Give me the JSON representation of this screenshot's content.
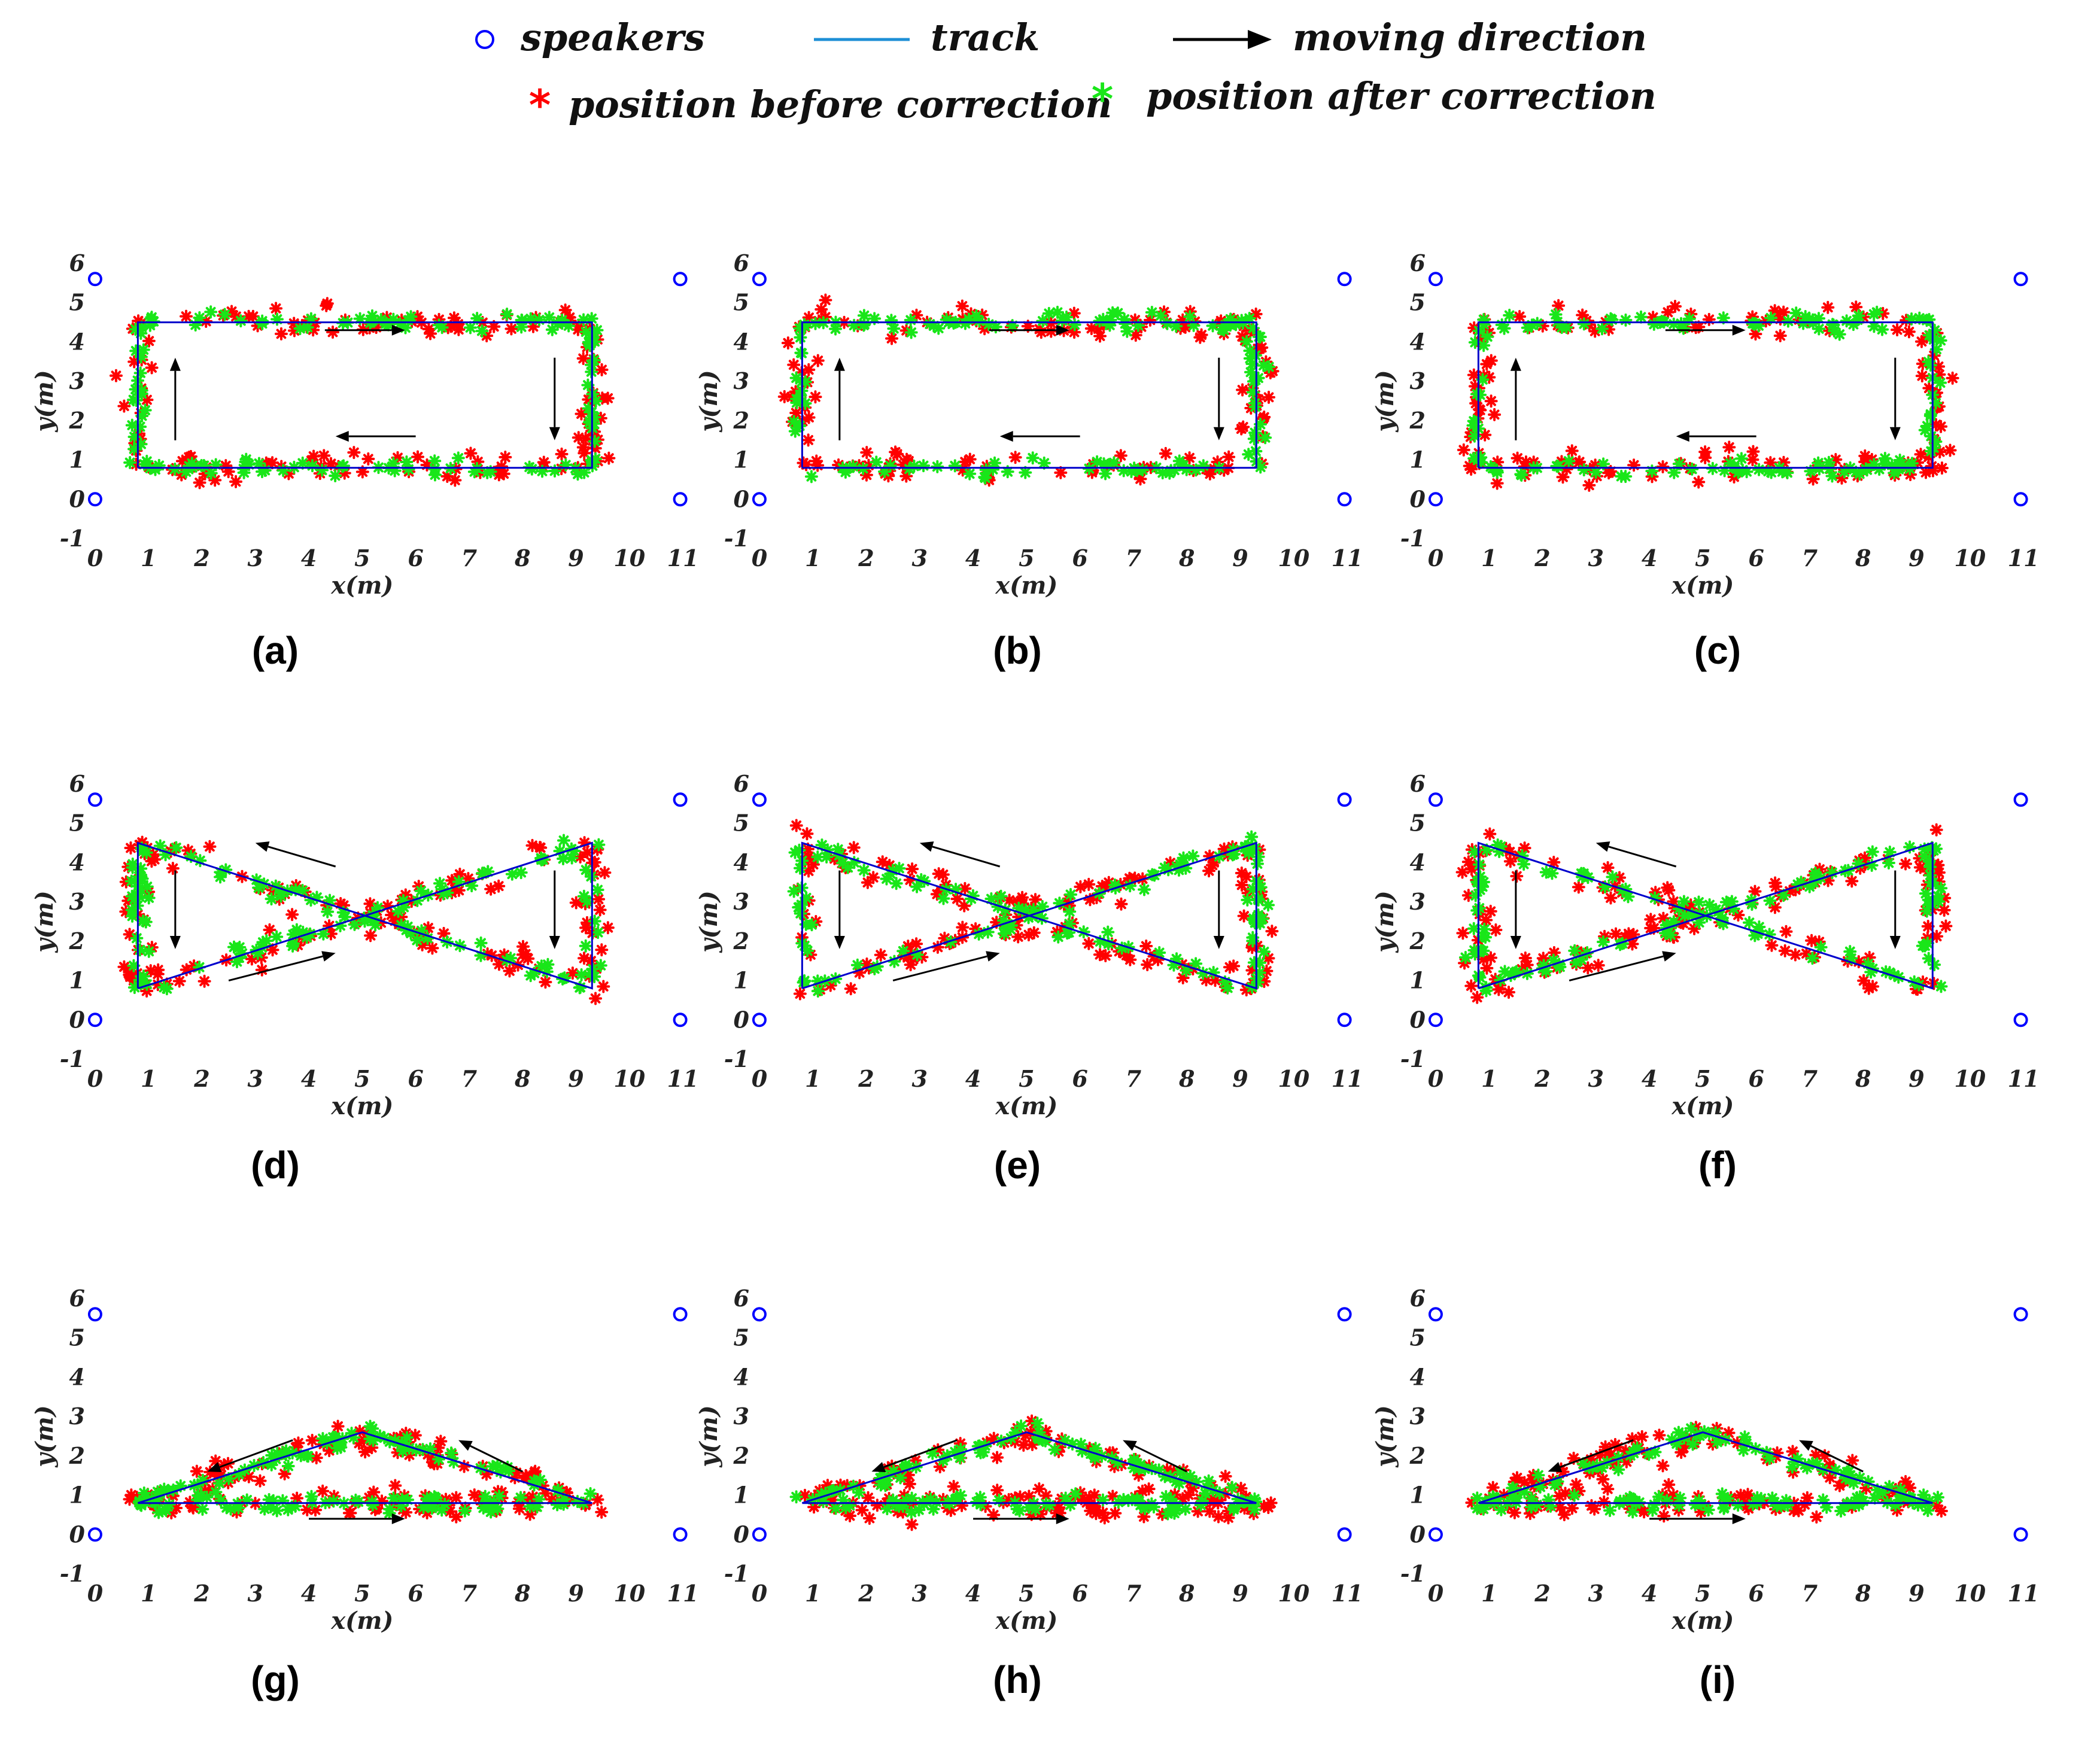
{
  "legend": {
    "speakers": "speakers",
    "track": "track",
    "moving_direction": "moving direction",
    "before": "position before correction",
    "after": "position after correction"
  },
  "colors": {
    "speaker": "#0000ff",
    "track": "#0000cc",
    "track_legend": "#1e8fd6",
    "before": "#ff0000",
    "after": "#19e619",
    "arrow": "#000000"
  },
  "chart_data": [
    {
      "id": "a",
      "label": "(a)",
      "type": "scatter",
      "shape": "rectangle",
      "xlabel": "x(m)",
      "ylabel": "y(m)",
      "xlim": [
        -0.1,
        11.1
      ],
      "ylim": [
        -1,
        6
      ],
      "xticks": [
        0,
        1,
        2,
        3,
        4,
        5,
        6,
        7,
        8,
        9,
        10,
        11
      ],
      "yticks": [
        -1,
        0,
        1,
        2,
        3,
        4,
        5,
        6
      ],
      "speakers": [
        [
          0,
          5.6
        ],
        [
          10.95,
          5.6
        ],
        [
          0,
          0
        ],
        [
          10.95,
          0
        ]
      ],
      "track": [
        [
          0.8,
          0.8
        ],
        [
          9.3,
          0.8
        ],
        [
          9.3,
          4.5
        ],
        [
          0.8,
          4.5
        ],
        [
          0.8,
          0.8
        ]
      ],
      "arrows": [
        [
          4.3,
          4.3,
          5.8,
          4.3
        ],
        [
          6,
          1.6,
          4.5,
          1.6
        ],
        [
          1.5,
          1.5,
          1.5,
          3.6
        ],
        [
          8.6,
          3.6,
          8.6,
          1.5
        ]
      ],
      "seed": 11
    },
    {
      "id": "b",
      "label": "(b)",
      "type": "scatter",
      "shape": "rectangle",
      "xlabel": "x(m)",
      "ylabel": "y(m)",
      "xlim": [
        -0.1,
        11.1
      ],
      "ylim": [
        -1,
        6
      ],
      "xticks": [
        0,
        1,
        2,
        3,
        4,
        5,
        6,
        7,
        8,
        9,
        10,
        11
      ],
      "yticks": [
        -1,
        0,
        1,
        2,
        3,
        4,
        5,
        6
      ],
      "speakers": [
        [
          0,
          5.6
        ],
        [
          10.95,
          5.6
        ],
        [
          0,
          0
        ],
        [
          10.95,
          0
        ]
      ],
      "track": [
        [
          0.8,
          0.8
        ],
        [
          9.3,
          0.8
        ],
        [
          9.3,
          4.5
        ],
        [
          0.8,
          4.5
        ],
        [
          0.8,
          0.8
        ]
      ],
      "arrows": [
        [
          4.3,
          4.3,
          5.8,
          4.3
        ],
        [
          6,
          1.6,
          4.5,
          1.6
        ],
        [
          1.5,
          1.5,
          1.5,
          3.6
        ],
        [
          8.6,
          3.6,
          8.6,
          1.5
        ]
      ],
      "seed": 23
    },
    {
      "id": "c",
      "label": "(c)",
      "type": "scatter",
      "shape": "rectangle",
      "xlabel": "x(m)",
      "ylabel": "y(m)",
      "xlim": [
        -0.1,
        11.1
      ],
      "ylim": [
        -1,
        6
      ],
      "xticks": [
        0,
        1,
        2,
        3,
        4,
        5,
        6,
        7,
        8,
        9,
        10,
        11
      ],
      "yticks": [
        -1,
        0,
        1,
        2,
        3,
        4,
        5,
        6
      ],
      "speakers": [
        [
          0,
          5.6
        ],
        [
          10.95,
          5.6
        ],
        [
          0,
          0
        ],
        [
          10.95,
          0
        ]
      ],
      "track": [
        [
          0.8,
          0.8
        ],
        [
          9.3,
          0.8
        ],
        [
          9.3,
          4.5
        ],
        [
          0.8,
          4.5
        ],
        [
          0.8,
          0.8
        ]
      ],
      "arrows": [
        [
          4.3,
          4.3,
          5.8,
          4.3
        ],
        [
          6,
          1.6,
          4.5,
          1.6
        ],
        [
          1.5,
          1.5,
          1.5,
          3.6
        ],
        [
          8.6,
          3.6,
          8.6,
          1.5
        ]
      ],
      "seed": 37
    },
    {
      "id": "d",
      "label": "(d)",
      "type": "scatter",
      "shape": "bowtie",
      "xlabel": "x(m)",
      "ylabel": "y(m)",
      "xlim": [
        -0.1,
        11.1
      ],
      "ylim": [
        -1,
        6
      ],
      "xticks": [
        0,
        1,
        2,
        3,
        4,
        5,
        6,
        7,
        8,
        9,
        10,
        11
      ],
      "yticks": [
        -1,
        0,
        1,
        2,
        3,
        4,
        5,
        6
      ],
      "speakers": [
        [
          0,
          5.6
        ],
        [
          10.95,
          5.6
        ],
        [
          0,
          0
        ],
        [
          10.95,
          0
        ]
      ],
      "track": [
        [
          0.8,
          0.8
        ],
        [
          9.3,
          4.5
        ],
        [
          9.3,
          0.8
        ],
        [
          0.8,
          4.5
        ],
        [
          0.8,
          0.8
        ]
      ],
      "arrows": [
        [
          4.5,
          3.9,
          3,
          4.5
        ],
        [
          2.5,
          1,
          4.5,
          1.7
        ],
        [
          1.5,
          3.8,
          1.5,
          1.8
        ],
        [
          8.6,
          3.8,
          8.6,
          1.8
        ]
      ],
      "seed": 41
    },
    {
      "id": "e",
      "label": "(e)",
      "type": "scatter",
      "shape": "bowtie",
      "xlabel": "x(m)",
      "ylabel": "y(m)",
      "xlim": [
        -0.1,
        11.1
      ],
      "ylim": [
        -1,
        6
      ],
      "xticks": [
        0,
        1,
        2,
        3,
        4,
        5,
        6,
        7,
        8,
        9,
        10,
        11
      ],
      "yticks": [
        -1,
        0,
        1,
        2,
        3,
        4,
        5,
        6
      ],
      "speakers": [
        [
          0,
          5.6
        ],
        [
          10.95,
          5.6
        ],
        [
          0,
          0
        ],
        [
          10.95,
          0
        ]
      ],
      "track": [
        [
          0.8,
          0.8
        ],
        [
          9.3,
          4.5
        ],
        [
          9.3,
          0.8
        ],
        [
          0.8,
          4.5
        ],
        [
          0.8,
          0.8
        ]
      ],
      "arrows": [
        [
          4.5,
          3.9,
          3,
          4.5
        ],
        [
          2.5,
          1,
          4.5,
          1.7
        ],
        [
          1.5,
          3.8,
          1.5,
          1.8
        ],
        [
          8.6,
          3.8,
          8.6,
          1.8
        ]
      ],
      "seed": 53
    },
    {
      "id": "f",
      "label": "(f)",
      "type": "scatter",
      "shape": "bowtie",
      "xlabel": "x(m)",
      "ylabel": "y(m)",
      "xlim": [
        -0.1,
        11.1
      ],
      "ylim": [
        -1,
        6
      ],
      "xticks": [
        0,
        1,
        2,
        3,
        4,
        5,
        6,
        7,
        8,
        9,
        10,
        11
      ],
      "yticks": [
        -1,
        0,
        1,
        2,
        3,
        4,
        5,
        6
      ],
      "speakers": [
        [
          0,
          5.6
        ],
        [
          10.95,
          5.6
        ],
        [
          0,
          0
        ],
        [
          10.95,
          0
        ]
      ],
      "track": [
        [
          0.8,
          0.8
        ],
        [
          9.3,
          4.5
        ],
        [
          9.3,
          0.8
        ],
        [
          0.8,
          4.5
        ],
        [
          0.8,
          0.8
        ]
      ],
      "arrows": [
        [
          4.5,
          3.9,
          3,
          4.5
        ],
        [
          2.5,
          1,
          4.5,
          1.7
        ],
        [
          1.5,
          3.8,
          1.5,
          1.8
        ],
        [
          8.6,
          3.8,
          8.6,
          1.8
        ]
      ],
      "seed": 67
    },
    {
      "id": "g",
      "label": "(g)",
      "type": "scatter",
      "shape": "triangle",
      "xlabel": "x(m)",
      "ylabel": "y(m)",
      "xlim": [
        -0.1,
        11.1
      ],
      "ylim": [
        -1,
        6
      ],
      "xticks": [
        0,
        1,
        2,
        3,
        4,
        5,
        6,
        7,
        8,
        9,
        10,
        11
      ],
      "yticks": [
        -1,
        0,
        1,
        2,
        3,
        4,
        5,
        6
      ],
      "speakers": [
        [
          0,
          5.6
        ],
        [
          10.95,
          5.6
        ],
        [
          0,
          0
        ],
        [
          10.95,
          0
        ]
      ],
      "track": [
        [
          0.8,
          0.8
        ],
        [
          5,
          2.6
        ],
        [
          9.3,
          0.8
        ],
        [
          0.8,
          0.8
        ]
      ],
      "arrows": [
        [
          3.7,
          2.4,
          2.1,
          1.6
        ],
        [
          8,
          1.6,
          6.8,
          2.4
        ],
        [
          4,
          0.4,
          5.8,
          0.4
        ]
      ],
      "seed": 71
    },
    {
      "id": "h",
      "label": "(h)",
      "type": "scatter",
      "shape": "triangle",
      "xlabel": "x(m)",
      "ylabel": "y(m)",
      "xlim": [
        -0.1,
        11.1
      ],
      "ylim": [
        -1,
        6
      ],
      "xticks": [
        0,
        1,
        2,
        3,
        4,
        5,
        6,
        7,
        8,
        9,
        10,
        11
      ],
      "yticks": [
        -1,
        0,
        1,
        2,
        3,
        4,
        5,
        6
      ],
      "speakers": [
        [
          0,
          5.6
        ],
        [
          10.95,
          5.6
        ],
        [
          0,
          0
        ],
        [
          10.95,
          0
        ]
      ],
      "track": [
        [
          0.8,
          0.8
        ],
        [
          5,
          2.6
        ],
        [
          9.3,
          0.8
        ],
        [
          0.8,
          0.8
        ]
      ],
      "arrows": [
        [
          3.7,
          2.4,
          2.1,
          1.6
        ],
        [
          8,
          1.6,
          6.8,
          2.4
        ],
        [
          4,
          0.4,
          5.8,
          0.4
        ]
      ],
      "seed": 83
    },
    {
      "id": "i",
      "label": "(i)",
      "type": "scatter",
      "shape": "triangle",
      "xlabel": "x(m)",
      "ylabel": "y(m)",
      "xlim": [
        -0.1,
        11.1
      ],
      "ylim": [
        -1,
        6
      ],
      "xticks": [
        0,
        1,
        2,
        3,
        4,
        5,
        6,
        7,
        8,
        9,
        10,
        11
      ],
      "yticks": [
        -1,
        0,
        1,
        2,
        3,
        4,
        5,
        6
      ],
      "speakers": [
        [
          0,
          5.6
        ],
        [
          10.95,
          5.6
        ],
        [
          0,
          0
        ],
        [
          10.95,
          0
        ]
      ],
      "track": [
        [
          0.8,
          0.8
        ],
        [
          5,
          2.6
        ],
        [
          9.3,
          0.8
        ],
        [
          0.8,
          0.8
        ]
      ],
      "arrows": [
        [
          3.7,
          2.4,
          2.1,
          1.6
        ],
        [
          8,
          1.6,
          6.8,
          2.4
        ],
        [
          4,
          0.4,
          5.8,
          0.4
        ]
      ],
      "seed": 97
    }
  ]
}
